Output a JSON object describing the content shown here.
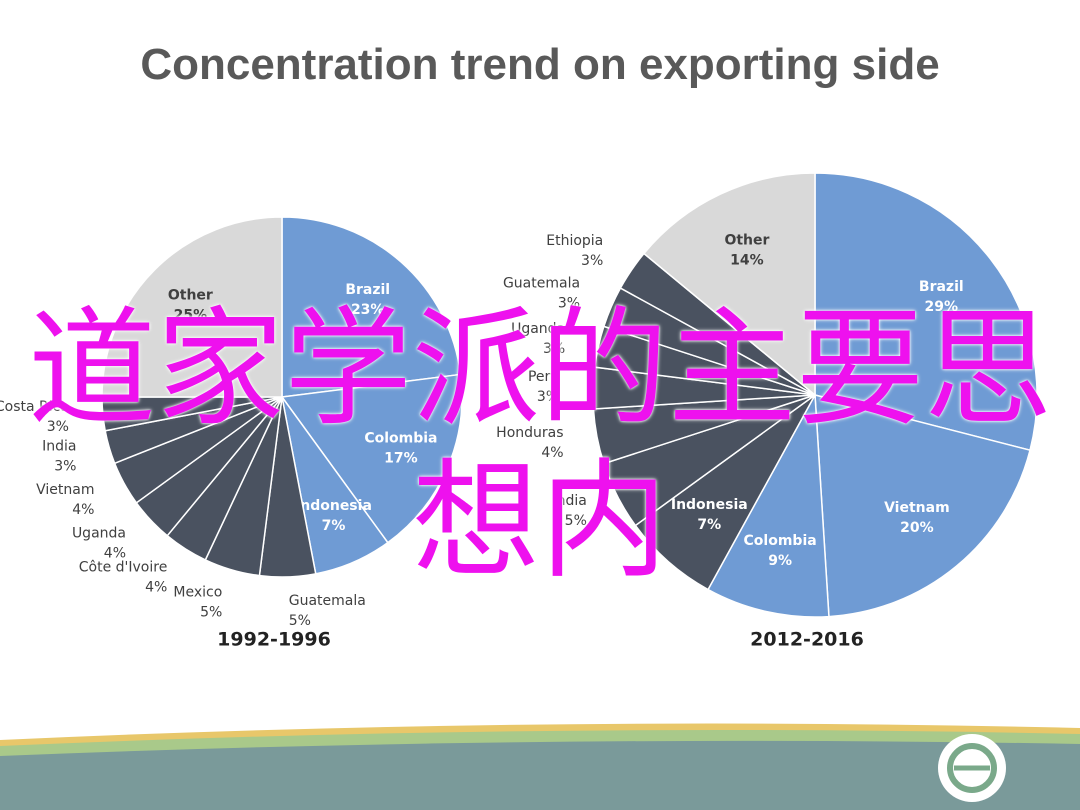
{
  "title": "Concentration trend on exporting side",
  "chart_data": [
    {
      "type": "pie",
      "title": "1992-1996",
      "categories": [
        "Brazil",
        "Colombia",
        "Indonesia",
        "Guatemala",
        "Mexico",
        "Côte d'Ivoire",
        "Uganda",
        "Vietnam",
        "India",
        "Costa Rica",
        "Other"
      ],
      "values": [
        23,
        17,
        7,
        5,
        5,
        4,
        4,
        4,
        3,
        3,
        25
      ],
      "value_labels": [
        "23%",
        "17%",
        "7%",
        "5%",
        "5%",
        "4%",
        "4%",
        "4%",
        "3%",
        "3%",
        "25%"
      ],
      "colors": [
        "#6f9bd4",
        "#6f9bd4",
        "#6f9bd4",
        "#4a5260",
        "#4a5260",
        "#4a5260",
        "#4a5260",
        "#4a5260",
        "#4a5260",
        "#4a5260",
        "#d9d9d9"
      ]
    },
    {
      "type": "pie",
      "title": "2012-2016",
      "categories": [
        "Brazil",
        "Vietnam",
        "Colombia",
        "Indonesia",
        "India",
        "Honduras",
        "Peru",
        "Uganda",
        "Guatemala",
        "Ethiopia",
        "Other"
      ],
      "values": [
        29,
        20,
        9,
        7,
        5,
        4,
        3,
        3,
        3,
        3,
        14
      ],
      "value_labels": [
        "29%",
        "20%",
        "9%",
        "7%",
        "5%",
        "4%",
        "3%",
        "3%",
        "3%",
        "3%",
        "14%"
      ],
      "colors": [
        "#6f9bd4",
        "#6f9bd4",
        "#6f9bd4",
        "#4a5260",
        "#4a5260",
        "#4a5260",
        "#4a5260",
        "#4a5260",
        "#4a5260",
        "#4a5260",
        "#d9d9d9"
      ]
    }
  ],
  "overlay_text": "道家学派的主要思想内"
}
